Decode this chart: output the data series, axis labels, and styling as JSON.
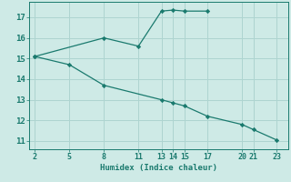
{
  "xlabel": "Humidex (Indice chaleur)",
  "xlim": [
    1.5,
    24.0
  ],
  "ylim": [
    10.6,
    17.75
  ],
  "xticks": [
    2,
    5,
    8,
    11,
    13,
    14,
    15,
    17,
    20,
    21,
    23
  ],
  "yticks": [
    11,
    12,
    13,
    14,
    15,
    16,
    17
  ],
  "bg_color": "#ceeae6",
  "grid_color": "#aed4d0",
  "line_color": "#1a7a6e",
  "upper_line": {
    "x": [
      2,
      8,
      11,
      13,
      14,
      15,
      17
    ],
    "y": [
      15.1,
      16.0,
      15.6,
      17.3,
      17.35,
      17.3,
      17.3
    ]
  },
  "lower_line": {
    "x": [
      2,
      5,
      8,
      13,
      14,
      15,
      17,
      20,
      21,
      23
    ],
    "y": [
      15.1,
      14.7,
      13.7,
      13.0,
      12.85,
      12.7,
      12.2,
      11.8,
      11.55,
      11.05
    ]
  }
}
